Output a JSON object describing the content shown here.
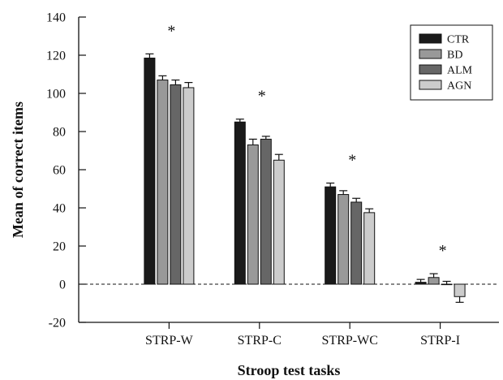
{
  "chart_data": {
    "type": "bar",
    "title": "",
    "xlabel": "Stroop test tasks",
    "ylabel": "Mean of correct items",
    "ylim": [
      -20,
      140
    ],
    "yticks": [
      -20,
      0,
      20,
      40,
      60,
      80,
      100,
      120,
      140
    ],
    "categories": [
      "STRP-W",
      "STRP-C",
      "STRP-WC",
      "STRP-I"
    ],
    "series": [
      {
        "name": "CTR",
        "color": "#1a1a1a",
        "values": [
          118.5,
          85,
          51,
          1
        ],
        "errors": [
          2.2,
          1.5,
          2,
          1.5
        ]
      },
      {
        "name": "BD",
        "color": "#999999",
        "values": [
          107,
          73,
          47,
          3.5
        ],
        "errors": [
          2.2,
          3,
          2,
          2
        ]
      },
      {
        "name": "ALM",
        "color": "#666666",
        "values": [
          104.5,
          76,
          43,
          0
        ],
        "errors": [
          2.5,
          1.5,
          2,
          1.5
        ]
      },
      {
        "name": "AGN",
        "color": "#cccccc",
        "values": [
          103,
          65,
          37.5,
          -6.5
        ],
        "errors": [
          2.7,
          3,
          2,
          3
        ]
      }
    ],
    "significance_markers": [
      "*",
      "*",
      "*",
      "*"
    ],
    "legend_position": "top-right",
    "reference_line": {
      "y": 0,
      "style": "dashed"
    },
    "grid": false
  }
}
